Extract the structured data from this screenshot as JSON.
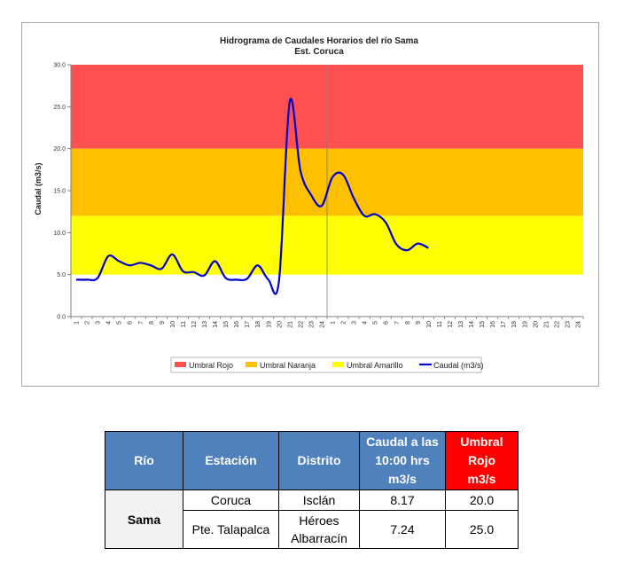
{
  "chart_data": {
    "type": "line",
    "title": "Hidrograma de Caudales Horarios del río Sama",
    "subtitle": "Est. Coruca",
    "ylabel": "Caudal (m3/s)",
    "xlabel": "",
    "ylim": [
      0,
      30
    ],
    "yticks": [
      "0.0",
      "5.0",
      "10.0",
      "15.0",
      "20.0",
      "25.0",
      "30.0"
    ],
    "x_ticks": [
      "1",
      "2",
      "3",
      "4",
      "5",
      "6",
      "7",
      "8",
      "9",
      "10",
      "11",
      "12",
      "13",
      "14",
      "15",
      "16",
      "17",
      "18",
      "19",
      "20",
      "21",
      "22",
      "23",
      "24",
      "1",
      "2",
      "3",
      "4",
      "5",
      "6",
      "7",
      "8",
      "9",
      "10",
      "11",
      "12",
      "13",
      "14",
      "15",
      "16",
      "17",
      "18",
      "19",
      "20",
      "21",
      "22",
      "23",
      "24"
    ],
    "thresholds": [
      {
        "name": "Umbral Rojo",
        "from": 20,
        "to": 30,
        "color": "#ff5050"
      },
      {
        "name": "Umbral Naranja",
        "from": 12,
        "to": 20,
        "color": "#ffc000"
      },
      {
        "name": "Umbral Amarillo",
        "from": 5,
        "to": 12,
        "color": "#ffff00"
      }
    ],
    "series": [
      {
        "name": "Caudal (m3/s)",
        "color": "#0000cc",
        "values": [
          4.4,
          4.4,
          4.6,
          7.2,
          6.6,
          6.1,
          6.4,
          6.1,
          5.7,
          7.4,
          5.4,
          5.3,
          4.9,
          6.6,
          4.6,
          4.4,
          4.5,
          6.1,
          4.4,
          4.3,
          25.6,
          17.4,
          14.5,
          13.2,
          16.6,
          16.9,
          14.1,
          12.0,
          12.2,
          11.2,
          8.6,
          7.9,
          8.7,
          8.17
        ]
      }
    ],
    "vline_after_index": 23,
    "legend_position": "bottom",
    "grid": false
  },
  "table": {
    "headers": {
      "rio": "Río",
      "estacion": "Estación",
      "distrito": "Distrito",
      "caudal": [
        "Caudal a las",
        "10:00 hrs",
        "m3/s"
      ],
      "umbral": [
        "Umbral",
        "Rojo",
        "m3/s"
      ]
    },
    "rio": "Sama",
    "rows": [
      {
        "estacion": "Coruca",
        "distrito": [
          "Isclán"
        ],
        "caudal": "8.17",
        "umbral": "20.0"
      },
      {
        "estacion": "Pte. Talapalca",
        "distrito": [
          "Héroes",
          "Albarracín"
        ],
        "caudal": "7.24",
        "umbral": "25.0"
      }
    ]
  }
}
